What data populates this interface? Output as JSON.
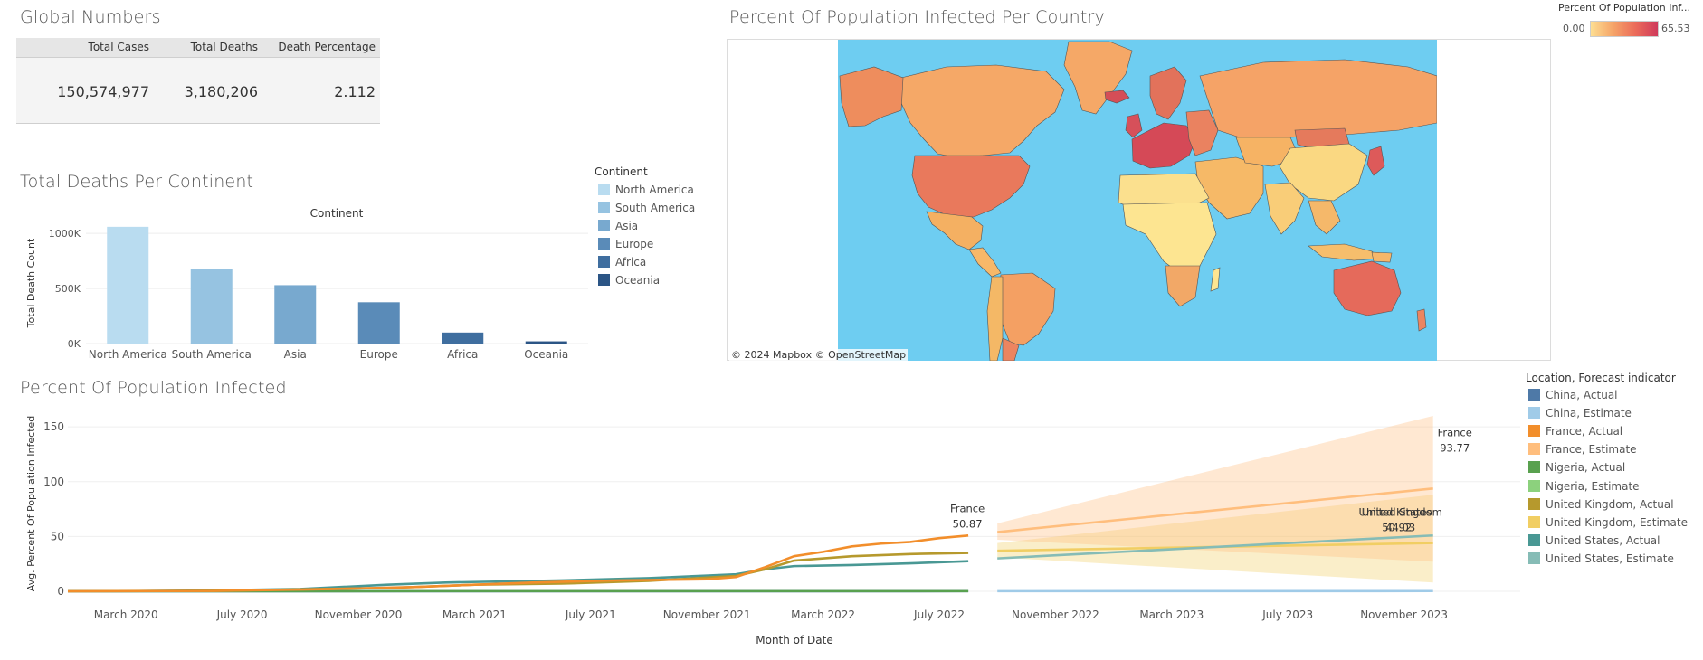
{
  "global_numbers": {
    "title": "Global Numbers",
    "headers": [
      "Total Cases",
      "Total Deaths",
      "Death Percentage"
    ],
    "values": [
      "150,574,977",
      "3,180,206",
      "2.112"
    ]
  },
  "map": {
    "title": "Percent Of Population Infected Per Country",
    "legend_title": "Percent Of Population Inf...",
    "legend_min": "0.00",
    "legend_max": "65.53",
    "credit": "© 2024 Mapbox  © OpenStreetMap",
    "colors": {
      "ocean": "#6ecdf1",
      "low": "#fde08f",
      "high": "#cf3a5b"
    }
  },
  "continent_legend": {
    "title": "Continent",
    "items": [
      {
        "label": "North America",
        "color": "#b9dcf0"
      },
      {
        "label": "South America",
        "color": "#96c3e1"
      },
      {
        "label": "Asia",
        "color": "#78a9cf"
      },
      {
        "label": "Europe",
        "color": "#5a8bb8"
      },
      {
        "label": "Africa",
        "color": "#3f6e9f"
      },
      {
        "label": "Oceania",
        "color": "#2b5585"
      }
    ]
  },
  "forecast_legend": {
    "title": "Location, Forecast indicator",
    "items": [
      {
        "label": "China, Actual",
        "color": "#4e79a7"
      },
      {
        "label": "China, Estimate",
        "color": "#a0cbe8"
      },
      {
        "label": "France, Actual",
        "color": "#f28e2b"
      },
      {
        "label": "France, Estimate",
        "color": "#ffbe7d"
      },
      {
        "label": "Nigeria, Actual",
        "color": "#59a14f"
      },
      {
        "label": "Nigeria, Estimate",
        "color": "#8cd17d"
      },
      {
        "label": "United Kingdom, Actual",
        "color": "#b6992d"
      },
      {
        "label": "United Kingdom, Estimate",
        "color": "#f1ce63"
      },
      {
        "label": "United States, Actual",
        "color": "#499894"
      },
      {
        "label": "United States, Estimate",
        "color": "#86bcb6"
      }
    ]
  },
  "chart_data": [
    {
      "type": "bar",
      "title": "Total Deaths Per Continent",
      "header": "Continent",
      "ylabel": "Total Death Count",
      "categories": [
        "North America",
        "South America",
        "Asia",
        "Europe",
        "Africa",
        "Oceania"
      ],
      "values": [
        1060000,
        680000,
        530000,
        375000,
        100000,
        20000
      ],
      "ylim": [
        0,
        1100000
      ],
      "yticks": [
        {
          "v": 0,
          "label": "0K"
        },
        {
          "v": 500000,
          "label": "500K"
        },
        {
          "v": 1000000,
          "label": "1000K"
        }
      ],
      "grid": true
    },
    {
      "type": "line",
      "title": "Percent Of Population Infected",
      "xlabel": "Month of Date",
      "ylabel": "Avg. Percent Of Population Infected",
      "ylim": [
        0,
        160
      ],
      "yticks": [
        0,
        50,
        100,
        150
      ],
      "xlim": [
        "2020-01",
        "2024-03"
      ],
      "xticks": [
        {
          "x": "2020-03",
          "label": "March 2020"
        },
        {
          "x": "2020-07",
          "label": "July 2020"
        },
        {
          "x": "2020-11",
          "label": "November 2020"
        },
        {
          "x": "2021-03",
          "label": "March 2021"
        },
        {
          "x": "2021-07",
          "label": "July 2021"
        },
        {
          "x": "2021-11",
          "label": "November 2021"
        },
        {
          "x": "2022-03",
          "label": "March 2022"
        },
        {
          "x": "2022-07",
          "label": "July 2022"
        },
        {
          "x": "2022-11",
          "label": "November 2022"
        },
        {
          "x": "2023-03",
          "label": "March 2023"
        },
        {
          "x": "2023-07",
          "label": "July 2023"
        },
        {
          "x": "2023-11",
          "label": "November 2023"
        }
      ],
      "series": [
        {
          "name": "China, Actual",
          "color": "#4e79a7",
          "x": [
            "2020-01",
            "2020-06",
            "2021-01",
            "2021-06",
            "2022-01",
            "2022-08"
          ],
          "values": [
            0.01,
            0.01,
            0.01,
            0.01,
            0.05,
            0.1
          ]
        },
        {
          "name": "China, Estimate",
          "color": "#a0cbe8",
          "x": [
            "2022-09",
            "2023-12"
          ],
          "values": [
            0.1,
            0.2
          ]
        },
        {
          "name": "Nigeria, Actual",
          "color": "#59a14f",
          "x": [
            "2020-01",
            "2021-01",
            "2022-01",
            "2022-08"
          ],
          "values": [
            0,
            0.1,
            0.1,
            0.1
          ]
        },
        {
          "name": "United States, Actual",
          "color": "#499894",
          "x": [
            "2020-01",
            "2020-03",
            "2020-06",
            "2020-09",
            "2020-12",
            "2021-02",
            "2021-06",
            "2021-09",
            "2021-12",
            "2022-01",
            "2022-02",
            "2022-04",
            "2022-06",
            "2022-08"
          ],
          "values": [
            0,
            0.1,
            0.8,
            2.1,
            6,
            8,
            10,
            12,
            15.5,
            20,
            23,
            24,
            25.5,
            27.5
          ]
        },
        {
          "name": "United Kingdom, Actual",
          "color": "#b6992d",
          "x": [
            "2020-01",
            "2020-06",
            "2020-12",
            "2021-03",
            "2021-06",
            "2021-09",
            "2021-12",
            "2022-01",
            "2022-02",
            "2022-04",
            "2022-06",
            "2022-08"
          ],
          "values": [
            0,
            0.5,
            3,
            6,
            7,
            9.5,
            14,
            20,
            28,
            32,
            34,
            35
          ]
        },
        {
          "name": "France, Actual",
          "color": "#f28e2b",
          "x": [
            "2020-01",
            "2020-06",
            "2020-10",
            "2021-01",
            "2021-05",
            "2021-08",
            "2021-11",
            "2021-12",
            "2022-01",
            "2022-02",
            "2022-03",
            "2022-04",
            "2022-05",
            "2022-06",
            "2022-07",
            "2022-08"
          ],
          "values": [
            0,
            0.3,
            2,
            4,
            8,
            10,
            11,
            13,
            22,
            32,
            36,
            41,
            43.5,
            45,
            48.5,
            50.87
          ]
        },
        {
          "name": "United Kingdom, Estimate",
          "color": "#f1ce63",
          "x": [
            "2022-09",
            "2023-12"
          ],
          "values": [
            37,
            44.03
          ],
          "band_upper": [
            44,
            88
          ],
          "band_lower": [
            31,
            8
          ]
        },
        {
          "name": "France, Estimate",
          "color": "#ffbe7d",
          "x": [
            "2022-09",
            "2023-12"
          ],
          "values": [
            54,
            93.77
          ],
          "band_upper": [
            62,
            160
          ],
          "band_lower": [
            47,
            27
          ]
        },
        {
          "name": "United States, Estimate",
          "color": "#86bcb6",
          "x": [
            "2022-09",
            "2023-12"
          ],
          "values": [
            30,
            50.92
          ]
        }
      ],
      "annotations": [
        {
          "series": "France, Actual",
          "name": "France",
          "value": "50.87",
          "x": "2022-08",
          "y": 50.87
        },
        {
          "series": "France, Estimate",
          "name": "France",
          "value": "93.77",
          "x": "2023-12",
          "y": 93.77
        },
        {
          "series": "United States, Estimate",
          "name": "United States",
          "value": "50.92",
          "x": "2023-12",
          "y": 50.92
        },
        {
          "series": "United Kingdom, Estimate",
          "name": "United Kingdom",
          "value": "44.03",
          "x": "2023-12",
          "y": 44.03
        }
      ]
    }
  ]
}
